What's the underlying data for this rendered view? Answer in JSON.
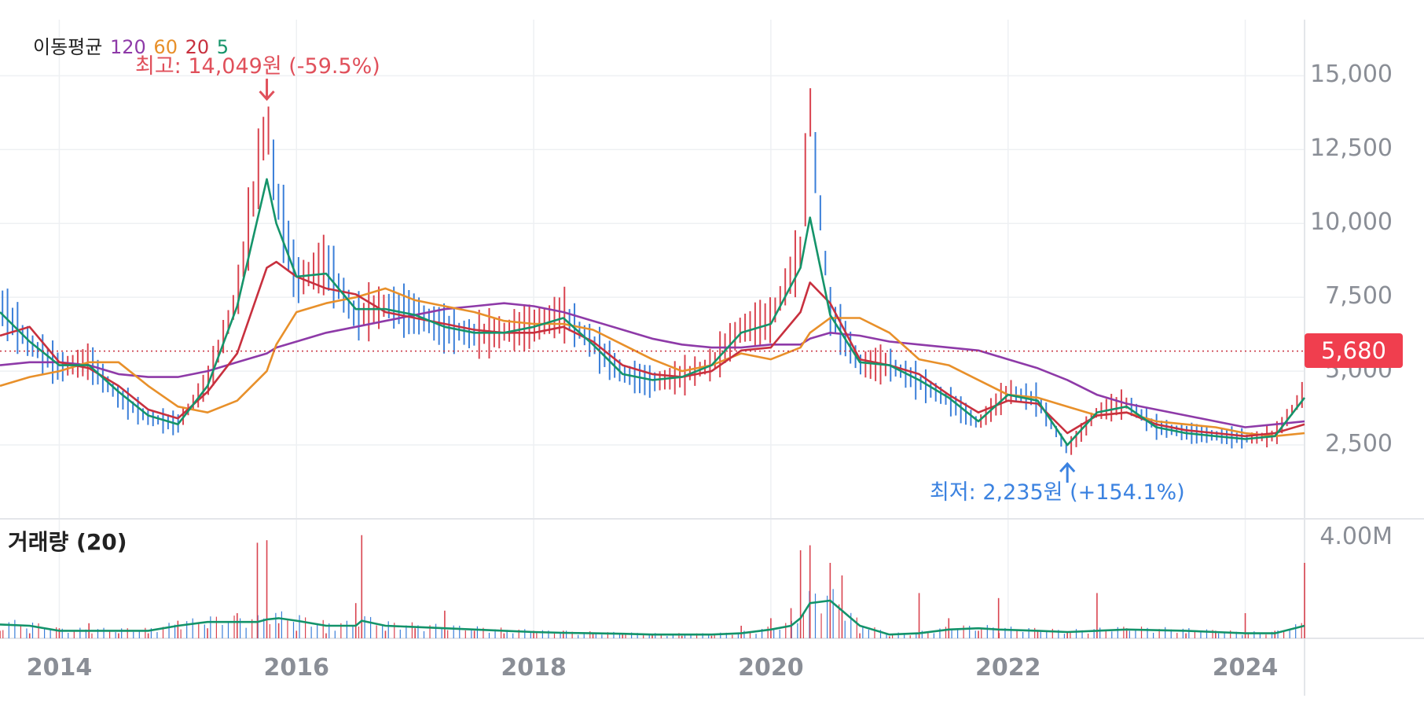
{
  "legend": {
    "label": "이동평균",
    "ma": [
      {
        "period": "120",
        "color": "#8e3aa8"
      },
      {
        "period": "60",
        "color": "#e8902a"
      },
      {
        "period": "20",
        "color": "#c8303e"
      },
      {
        "period": "5",
        "color": "#15946a"
      }
    ]
  },
  "annotations": {
    "high": "최고: 14,049원 (-59.5%)",
    "low": "최저: 2,235원 (+154.1%)"
  },
  "current_price_label": "5,680",
  "volume_title": "거래량 (20)",
  "colors": {
    "up": "#d9434f",
    "down": "#3b7fd9",
    "ma120": "#8e3aa8",
    "ma60": "#e8902a",
    "ma20": "#c8303e",
    "ma5": "#15946a",
    "volume_ma": "#13936a",
    "high_arrow": "#e0505b",
    "low_arrow": "#3b82e0"
  },
  "chart_data": [
    {
      "type": "line",
      "title": "",
      "x_axis": {
        "type": "date",
        "range": [
          "2013-06",
          "2024-06"
        ],
        "ticks": [
          "2014",
          "2016",
          "2018",
          "2020",
          "2022",
          "2024"
        ]
      },
      "y_axis": {
        "range": [
          0,
          16500
        ],
        "ticks": [
          "2,500",
          "5,000",
          "7,500",
          "10,000",
          "12,500",
          "15,000"
        ],
        "position": "right"
      },
      "grid": true,
      "current_price": 5680,
      "high": {
        "date": "2015-10",
        "value": 14049
      },
      "low": {
        "date": "2022-07",
        "value": 2235
      },
      "price_x": [
        2013.5,
        2013.75,
        2014.0,
        2014.25,
        2014.5,
        2014.75,
        2015.0,
        2015.25,
        2015.5,
        2015.75,
        2015.83,
        2016.0,
        2016.25,
        2016.5,
        2016.75,
        2017.0,
        2017.25,
        2017.5,
        2017.75,
        2018.0,
        2018.25,
        2018.5,
        2018.75,
        2019.0,
        2019.25,
        2019.5,
        2019.75,
        2020.0,
        2020.25,
        2020.33,
        2020.5,
        2020.75,
        2021.0,
        2021.25,
        2021.5,
        2021.75,
        2022.0,
        2022.25,
        2022.5,
        2022.75,
        2023.0,
        2023.25,
        2023.5,
        2023.75,
        2024.0,
        2024.25,
        2024.5
      ],
      "price": [
        7200,
        5900,
        5100,
        5300,
        4100,
        3400,
        3200,
        4600,
        7500,
        13500,
        11000,
        8000,
        8600,
        6800,
        7200,
        6900,
        6400,
        6200,
        6300,
        6500,
        6900,
        5900,
        4900,
        4600,
        4800,
        5200,
        6400,
        6700,
        9000,
        13800,
        7000,
        5200,
        5200,
        4600,
        4000,
        3200,
        4300,
        4000,
        2300,
        3600,
        3900,
        3100,
        2900,
        2800,
        2700,
        2800,
        4300
      ],
      "series": [
        {
          "name": "120",
          "values": [
            5200,
            5300,
            5300,
            5200,
            4900,
            4800,
            4800,
            5000,
            5300,
            5600,
            5800,
            6000,
            6300,
            6500,
            6700,
            6900,
            7100,
            7200,
            7300,
            7200,
            7000,
            6700,
            6400,
            6100,
            5900,
            5800,
            5800,
            5900,
            5900,
            6100,
            6300,
            6200,
            6000,
            5900,
            5800,
            5700,
            5400,
            5100,
            4700,
            4200,
            3900,
            3700,
            3500,
            3300,
            3100,
            3200,
            3300
          ]
        },
        {
          "name": "60",
          "values": [
            4500,
            4800,
            5000,
            5300,
            5300,
            4500,
            3800,
            3600,
            4000,
            5000,
            5900,
            7000,
            7300,
            7500,
            7800,
            7400,
            7200,
            7000,
            6700,
            6600,
            6600,
            6400,
            5900,
            5400,
            5000,
            5200,
            5600,
            5400,
            5800,
            6300,
            6800,
            6800,
            6300,
            5400,
            5200,
            4700,
            4200,
            4100,
            3800,
            3500,
            3600,
            3300,
            3200,
            3100,
            2900,
            2800,
            2900
          ]
        },
        {
          "name": "20",
          "values": [
            6200,
            6500,
            5300,
            5100,
            4500,
            3700,
            3400,
            4300,
            5600,
            8500,
            8700,
            8200,
            7800,
            7600,
            7000,
            6800,
            6600,
            6400,
            6300,
            6300,
            6500,
            6000,
            5200,
            4900,
            4800,
            5000,
            5700,
            5800,
            7000,
            8000,
            7300,
            5400,
            5200,
            4900,
            4200,
            3600,
            4000,
            3900,
            2900,
            3500,
            3600,
            3200,
            3000,
            2900,
            2800,
            2900,
            3200
          ]
        },
        {
          "name": "5",
          "values": [
            7000,
            6000,
            5200,
            5200,
            4300,
            3500,
            3200,
            4500,
            7200,
            11500,
            10000,
            8200,
            8300,
            7100,
            7100,
            6900,
            6500,
            6300,
            6300,
            6500,
            6800,
            5900,
            4900,
            4700,
            4800,
            5200,
            6300,
            6600,
            8500,
            10200,
            6900,
            5300,
            5200,
            4700,
            4100,
            3300,
            4200,
            4000,
            2500,
            3600,
            3800,
            3100,
            2900,
            2800,
            2700,
            2800,
            4100
          ]
        }
      ]
    },
    {
      "type": "bar",
      "title": "거래량 (20)",
      "y_axis": {
        "range": [
          0,
          4500000
        ],
        "ticks": [
          "4.00M"
        ],
        "position": "right"
      },
      "volume_x": [
        2013.5,
        2013.75,
        2014.0,
        2014.25,
        2014.5,
        2014.75,
        2015.0,
        2015.25,
        2015.5,
        2015.67,
        2015.75,
        2015.85,
        2016.0,
        2016.25,
        2016.5,
        2016.55,
        2016.75,
        2017.0,
        2017.25,
        2017.5,
        2017.75,
        2018.0,
        2018.25,
        2018.5,
        2018.75,
        2019.0,
        2019.25,
        2019.5,
        2019.75,
        2020.0,
        2020.17,
        2020.25,
        2020.33,
        2020.5,
        2020.6,
        2020.75,
        2021.0,
        2021.25,
        2021.5,
        2021.75,
        2021.92,
        2022.25,
        2022.5,
        2022.75,
        2023.0,
        2023.5,
        2023.75,
        2024.0,
        2024.25,
        2024.5
      ],
      "volume": [
        300000,
        200000,
        400000,
        600000,
        200000,
        200000,
        700000,
        400000,
        1000000,
        3800000,
        3900000,
        600000,
        300000,
        200000,
        1400000,
        4100000,
        300000,
        400000,
        1100000,
        300000,
        200000,
        300000,
        300000,
        200000,
        200000,
        150000,
        100000,
        100000,
        500000,
        800000,
        1200000,
        3500000,
        3700000,
        3000000,
        2500000,
        200000,
        80000,
        1800000,
        800000,
        300000,
        1600000,
        300000,
        250000,
        1800000,
        400000,
        200000,
        300000,
        1000000,
        300000,
        3000000
      ],
      "volume_ma": [
        550000,
        500000,
        300000,
        300000,
        300000,
        300000,
        500000,
        650000,
        650000,
        650000,
        750000,
        800000,
        700000,
        500000,
        500000,
        700000,
        500000,
        450000,
        400000,
        350000,
        300000,
        250000,
        220000,
        200000,
        180000,
        150000,
        150000,
        150000,
        200000,
        350000,
        500000,
        800000,
        1400000,
        1500000,
        1100000,
        500000,
        150000,
        200000,
        350000,
        400000,
        350000,
        300000,
        250000,
        300000,
        350000,
        300000,
        250000,
        200000,
        200000,
        500000
      ]
    }
  ]
}
